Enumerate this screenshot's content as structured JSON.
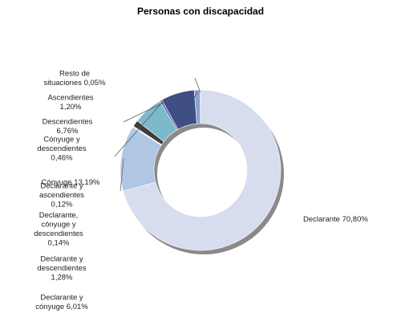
{
  "chart_data": {
    "type": "pie",
    "title": "Personas con discapacidad",
    "slices": [
      {
        "name": "Declarante",
        "label_lines": [
          "Declarante 70,80%"
        ],
        "value": 70.8,
        "color": "#d8dcef"
      },
      {
        "name": "Cónyuge",
        "label_lines": [
          "Cónyuge 13,19%"
        ],
        "value": 13.19,
        "color": "#afc6e4"
      },
      {
        "name": "Declarante y ascendientes",
        "label_lines": [
          "Declarante y",
          "ascendientes",
          "0,12%"
        ],
        "value": 0.12,
        "color": "#6f6f6f"
      },
      {
        "name": "Declarante, cónyuge y descendientes",
        "label_lines": [
          "Declarante,",
          "cónyuge y",
          "descendientes",
          "0,14%"
        ],
        "value": 0.14,
        "color": "#9a9a9a"
      },
      {
        "name": "Declarante y descendientes",
        "label_lines": [
          "Declarante y",
          "descendientes",
          "1,28%"
        ],
        "value": 1.28,
        "color": "#3c3c3c"
      },
      {
        "name": "Declarante y cónyuge",
        "label_lines": [
          "Declarante y",
          "cónyuge 6,01%"
        ],
        "value": 6.01,
        "color": "#7db8cb"
      },
      {
        "name": "Cónyuge y descendientes",
        "label_lines": [
          "Cónyuge y",
          "descendientes",
          "0,46%"
        ],
        "value": 0.46,
        "color": "#5a6fae"
      },
      {
        "name": "Descendientes",
        "label_lines": [
          "Descendientes",
          "6,76%"
        ],
        "value": 6.76,
        "color": "#3e4d84"
      },
      {
        "name": "Ascendientes",
        "label_lines": [
          "Ascendientes",
          "1,20%"
        ],
        "value": 1.2,
        "color": "#8aa0d2"
      },
      {
        "name": "Resto de situaciones",
        "label_lines": [
          "Resto de",
          "situaciones 0,05%"
        ],
        "value": 0.05,
        "color": "#e6e6f0"
      }
    ]
  }
}
